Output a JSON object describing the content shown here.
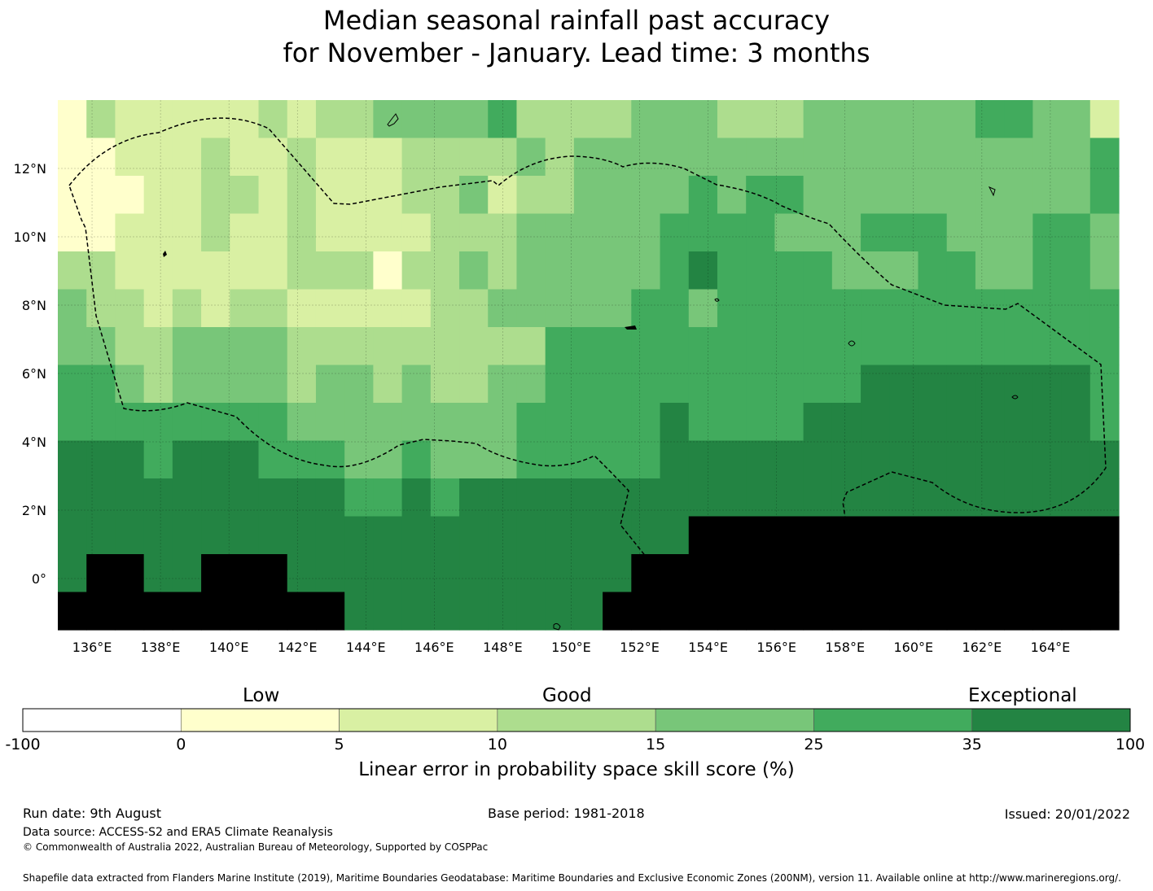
{
  "title": {
    "line1": "Median seasonal rainfall past accuracy",
    "line2": "for November - January. Lead time: 3 months"
  },
  "map": {
    "lon_range": [
      135,
      166
    ],
    "lat_range": [
      -1.5,
      14
    ],
    "x_ticks": [
      "136°E",
      "138°E",
      "140°E",
      "142°E",
      "144°E",
      "146°E",
      "148°E",
      "150°E",
      "152°E",
      "154°E",
      "156°E",
      "158°E",
      "160°E",
      "162°E",
      "164°E"
    ],
    "y_ticks": [
      "12°N",
      "10°N",
      "8°N",
      "6°N",
      "4°N",
      "2°N",
      "0°"
    ],
    "grid": true,
    "cell_columns": 37,
    "cell_rows": 14,
    "category_grid": [
      "1322222323344445333344433344444455442",
      "1122232232223333434444444444444444445",
      "1112233232223342334444545544444444445",
      "1122232232222333444445555444555444554",
      "3322222233313343444445655554445544554",
      "4332323322222334444455455555555555555",
      "4433444433333333355555555555555555555",
      "5543444434434334455555555555666666665",
      "5555555544444444555556555566666666665",
      "6665666555445444555556666666666666666",
      "6666666666556566666666666666666666666",
      "6666666666666666666666777777777777777",
      "6776677766666666666677777777777777777",
      "7777777777666666666777777777777777777"
    ],
    "palette_index_note": "0=-100..0 white,1=0-5,2=5-10,3=10-15,4=15-25,5=25-35,6=35-100"
  },
  "colorbar": {
    "colors": [
      "#ffffff",
      "#ffffcc",
      "#d9f0a3",
      "#addd8e",
      "#78c679",
      "#41ab5d",
      "#238443"
    ],
    "boundaries": [
      "-100",
      "0",
      "5",
      "10",
      "15",
      "25",
      "35",
      "100"
    ],
    "categories": [
      "Low",
      "Good",
      "Exceptional"
    ],
    "label": "Linear error in probability space skill score (%)"
  },
  "footer": {
    "run_date": "Run date: 9th August",
    "base_period": "Base period: 1981-2018",
    "issued": "Issued: 20/01/2022",
    "data_source": "Data source: ACCESS-S2 and ERA5 Climate Reanalysis",
    "copyright": "© Commonwealth of Australia 2022, Australian Bureau of Meteorology, Supported by COSPPac",
    "shapefile": "Shapefile data extracted from Flanders Marine Institute (2019), Maritime Boundaries Geodatabase: Maritime Boundaries and Exclusive Economic Zones (200NM), version 11. Available online at http://www.marineregions.org/."
  }
}
